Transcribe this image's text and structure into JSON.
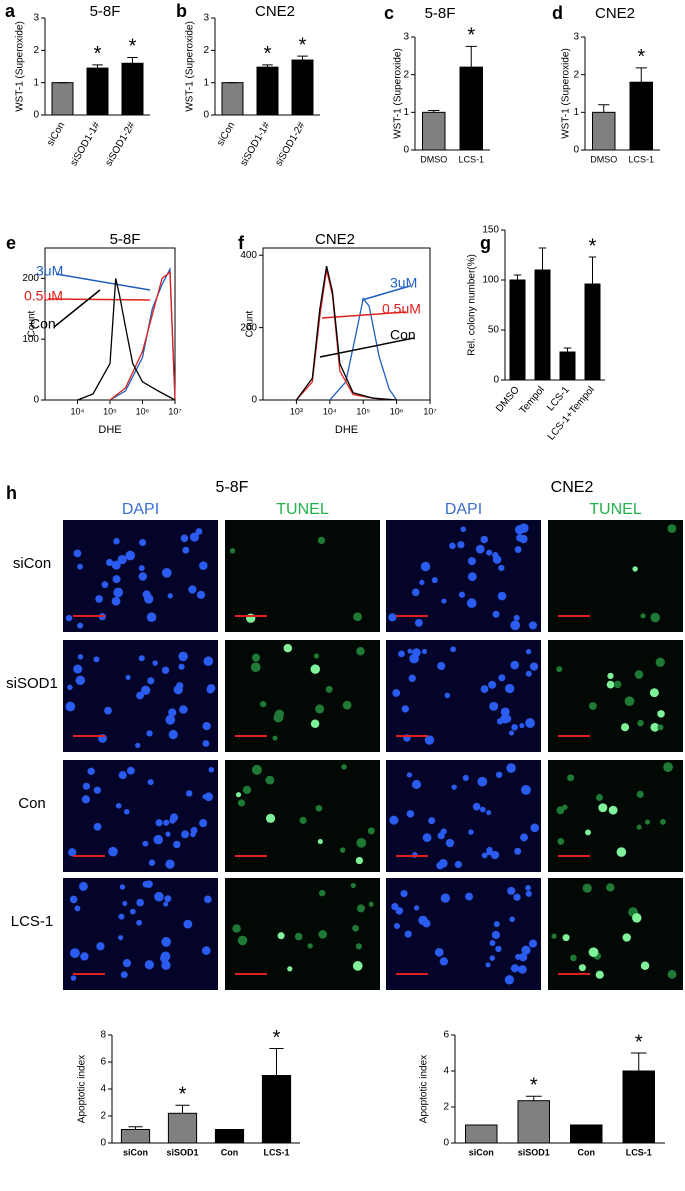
{
  "chart_data": [
    {
      "type": "bar",
      "panel": "a",
      "title": "5-8F",
      "ylabel": "WST-1 (Superoxide)",
      "categories": [
        "siCon",
        "siSOD1-1#",
        "siSOD1-2#"
      ],
      "values": [
        1,
        1.45,
        1.6
      ],
      "errors": [
        0,
        0.1,
        0.18
      ],
      "colors": [
        "#808080",
        "#000000",
        "#000000"
      ],
      "significance": [
        null,
        "*",
        "*"
      ],
      "ylim": [
        0,
        3
      ],
      "yticks": [
        0,
        1,
        2,
        3
      ]
    },
    {
      "type": "bar",
      "panel": "b",
      "title": "CNE2",
      "ylabel": "WST-1 (Superoxide)",
      "categories": [
        "siCon",
        "siSOD1-1#",
        "siSOD1-2#"
      ],
      "values": [
        1,
        1.48,
        1.7
      ],
      "errors": [
        0,
        0.07,
        0.12
      ],
      "colors": [
        "#808080",
        "#000000",
        "#000000"
      ],
      "significance": [
        null,
        "*",
        "*"
      ],
      "ylim": [
        0,
        3
      ],
      "yticks": [
        0,
        1,
        2,
        3
      ]
    },
    {
      "type": "bar",
      "panel": "c",
      "title": "5-8F",
      "ylabel": "WST-1 (Superoxide)",
      "categories": [
        "DMSO",
        "LCS-1"
      ],
      "values": [
        1,
        2.2
      ],
      "errors": [
        0.05,
        0.55
      ],
      "colors": [
        "#808080",
        "#000000"
      ],
      "significance": [
        null,
        "*"
      ],
      "ylim": [
        0,
        3
      ],
      "yticks": [
        0,
        1,
        2,
        3
      ]
    },
    {
      "type": "bar",
      "panel": "d",
      "title": "CNE2",
      "ylabel": "WST-1 (Superoxide)",
      "categories": [
        "DMSO",
        "LCS-1"
      ],
      "values": [
        1,
        1.8
      ],
      "errors": [
        0.2,
        0.38
      ],
      "colors": [
        "#808080",
        "#000000"
      ],
      "significance": [
        null,
        "*"
      ],
      "ylim": [
        0,
        3
      ],
      "yticks": [
        0,
        1,
        2,
        3
      ]
    },
    {
      "type": "line",
      "panel": "e",
      "title": "5-8F",
      "xlabel": "DHE",
      "ylabel": "Count",
      "xscale": "log",
      "xlim": [
        1000,
        10000000
      ],
      "xticks": [
        {
          "value": 10000,
          "label": "10⁴"
        },
        {
          "value": 100000,
          "label": "10⁵"
        },
        {
          "value": 1000000,
          "label": "10⁶"
        },
        {
          "value": 10000000,
          "label": "10⁷"
        }
      ],
      "ylim": [
        0,
        250
      ],
      "yticks": [
        0,
        100,
        200
      ],
      "series": [
        {
          "name": "3uM",
          "color": "#1f5fbf",
          "x": [
            100000,
            300000,
            1000000,
            2000000,
            4000000,
            7000000,
            10000000
          ],
          "values": [
            0,
            15,
            70,
            150,
            190,
            215,
            0
          ]
        },
        {
          "name": "0.5uM",
          "color": "#e0201b",
          "x": [
            100000,
            300000,
            1000000,
            2000000,
            4000000,
            7000000,
            10000000
          ],
          "values": [
            0,
            20,
            80,
            140,
            200,
            210,
            0
          ]
        },
        {
          "name": "Con",
          "color": "#000000",
          "x": [
            10000,
            30000,
            100000,
            150000,
            200000,
            300000,
            500000,
            1000000,
            3000000,
            10000000
          ],
          "values": [
            0,
            10,
            60,
            200,
            170,
            120,
            60,
            30,
            15,
            0
          ]
        }
      ]
    },
    {
      "type": "line",
      "panel": "f",
      "title": "CNE2",
      "xlabel": "DHE",
      "ylabel": "Count",
      "xscale": "log",
      "xlim": [
        100,
        10000000
      ],
      "xticks": [
        {
          "value": 1000,
          "label": "10³"
        },
        {
          "value": 10000,
          "label": "10⁴"
        },
        {
          "value": 100000,
          "label": "10⁵"
        },
        {
          "value": 1000000,
          "label": "10⁶"
        },
        {
          "value": 10000000,
          "label": "10⁷"
        }
      ],
      "ylim": [
        0,
        420
      ],
      "yticks": [
        0,
        200,
        400
      ],
      "series": [
        {
          "name": "3uM",
          "color": "#1f5fbf",
          "x": [
            10000,
            30000,
            60000,
            100000,
            150000,
            300000,
            600000,
            1000000
          ],
          "values": [
            0,
            50,
            180,
            280,
            260,
            120,
            30,
            0
          ]
        },
        {
          "name": "0.5uM",
          "color": "#e0201b",
          "x": [
            1000,
            3000,
            5000,
            8000,
            12000,
            20000,
            50000,
            200000,
            1000000
          ],
          "values": [
            0,
            50,
            230,
            360,
            290,
            80,
            15,
            5,
            0
          ]
        },
        {
          "name": "Con",
          "color": "#000000",
          "x": [
            1000,
            3000,
            5000,
            8000,
            12000,
            20000,
            50000,
            200000,
            1000000
          ],
          "values": [
            0,
            60,
            250,
            370,
            300,
            100,
            20,
            5,
            0
          ]
        }
      ]
    },
    {
      "type": "bar",
      "panel": "g",
      "ylabel": "Rel. colony number(%)",
      "categories": [
        "DMSO",
        "Tempol",
        "LCS-1",
        "LCS-1+Tempol"
      ],
      "values": [
        100,
        110,
        28,
        96
      ],
      "errors": [
        5,
        22,
        4,
        27
      ],
      "colors": [
        "#000000",
        "#000000",
        "#000000",
        "#000000"
      ],
      "significance": [
        null,
        null,
        null,
        "*"
      ],
      "ylim": [
        0,
        150
      ],
      "yticks": [
        0,
        50,
        100,
        150
      ]
    },
    {
      "type": "bar",
      "ylabel": "Apoptotic index",
      "categories": [
        "siCon",
        "siSOD1",
        "Con",
        "LCS-1"
      ],
      "values": [
        1,
        2.2,
        1,
        5
      ],
      "errors": [
        0.2,
        0.6,
        0,
        2
      ],
      "colors": [
        "#808080",
        "#808080",
        "#000000",
        "#000000"
      ],
      "significance": [
        null,
        "*",
        null,
        "*"
      ],
      "ylim": [
        0,
        8
      ],
      "yticks": [
        0,
        2,
        4,
        6,
        8
      ]
    },
    {
      "type": "bar",
      "ylabel": "Apoptotic index",
      "categories": [
        "siCon",
        "siSOD1",
        "Con",
        "LCS-1"
      ],
      "values": [
        1,
        2.35,
        1,
        4
      ],
      "errors": [
        0,
        0.25,
        0,
        1
      ],
      "colors": [
        "#808080",
        "#808080",
        "#000000",
        "#000000"
      ],
      "significance": [
        null,
        "*",
        null,
        "*"
      ],
      "ylim": [
        0,
        6
      ],
      "yticks": [
        0,
        2,
        4,
        6
      ]
    }
  ],
  "panel_h": {
    "letter": "h",
    "cell_lines": [
      "5-8F",
      "CNE2"
    ],
    "columns": [
      "DAPI",
      "TUNEL",
      "DAPI",
      "TUNEL"
    ],
    "rows": [
      "siCon",
      "siSOD1",
      "Con",
      "LCS-1"
    ]
  }
}
